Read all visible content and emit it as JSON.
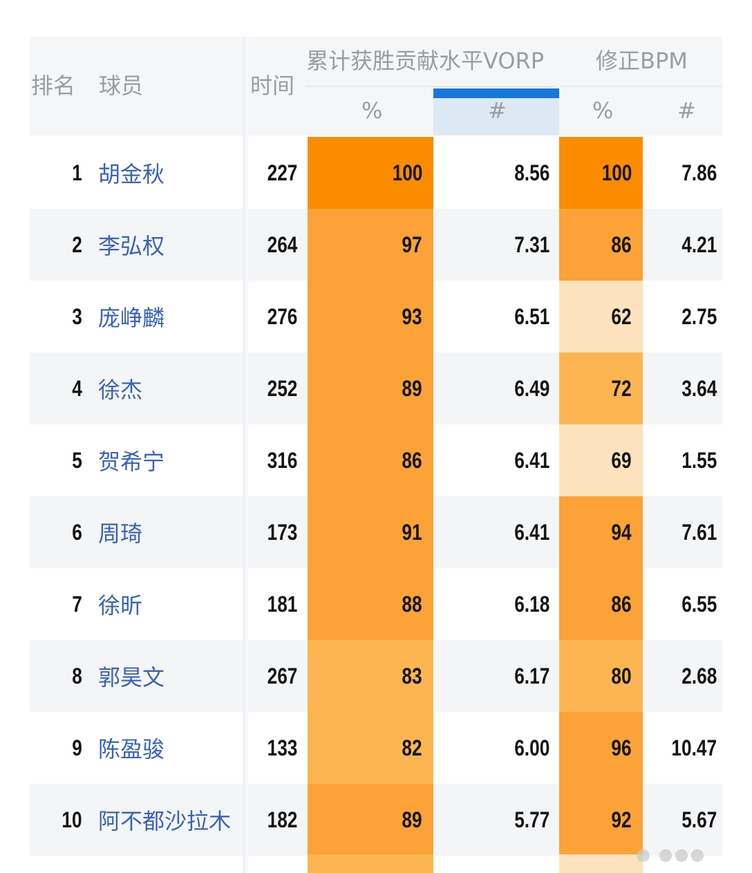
{
  "header": {
    "rank": "排名",
    "player": "球员",
    "time": "时间",
    "vorp_group": "累计获胜贡献水平VORP",
    "bpm_group": "修正BPM",
    "pct": "%",
    "num": "#"
  },
  "sort": {
    "column": "vorp_num",
    "accent": "#1677d9"
  },
  "heat_colors": {
    "max": "#fb8c00",
    "high": "#fca236",
    "mid": "#fdb552",
    "low": "#fee2bd"
  },
  "rows": [
    {
      "rank": "1",
      "name": "胡金秋",
      "time": "227",
      "vorp_pct": "100",
      "vorp_num": "8.56",
      "bpm_pct": "100",
      "bpm_num": "7.86"
    },
    {
      "rank": "2",
      "name": "李弘权",
      "time": "264",
      "vorp_pct": "97",
      "vorp_num": "7.31",
      "bpm_pct": "86",
      "bpm_num": "4.21"
    },
    {
      "rank": "3",
      "name": "庞峥麟",
      "time": "276",
      "vorp_pct": "93",
      "vorp_num": "6.51",
      "bpm_pct": "62",
      "bpm_num": "2.75"
    },
    {
      "rank": "4",
      "name": "徐杰",
      "time": "252",
      "vorp_pct": "89",
      "vorp_num": "6.49",
      "bpm_pct": "72",
      "bpm_num": "3.64"
    },
    {
      "rank": "5",
      "name": "贺希宁",
      "time": "316",
      "vorp_pct": "86",
      "vorp_num": "6.41",
      "bpm_pct": "69",
      "bpm_num": "1.55"
    },
    {
      "rank": "6",
      "name": "周琦",
      "time": "173",
      "vorp_pct": "91",
      "vorp_num": "6.41",
      "bpm_pct": "94",
      "bpm_num": "7.61"
    },
    {
      "rank": "7",
      "name": "徐昕",
      "time": "181",
      "vorp_pct": "88",
      "vorp_num": "6.18",
      "bpm_pct": "86",
      "bpm_num": "6.55"
    },
    {
      "rank": "8",
      "name": "郭昊文",
      "time": "267",
      "vorp_pct": "83",
      "vorp_num": "6.17",
      "bpm_pct": "80",
      "bpm_num": "2.68"
    },
    {
      "rank": "9",
      "name": "陈盈骏",
      "time": "133",
      "vorp_pct": "82",
      "vorp_num": "6.00",
      "bpm_pct": "96",
      "bpm_num": "10.47"
    },
    {
      "rank": "10",
      "name": "阿不都沙拉木",
      "time": "182",
      "vorp_pct": "89",
      "vorp_num": "5.77",
      "bpm_pct": "92",
      "bpm_num": "5.67"
    }
  ]
}
